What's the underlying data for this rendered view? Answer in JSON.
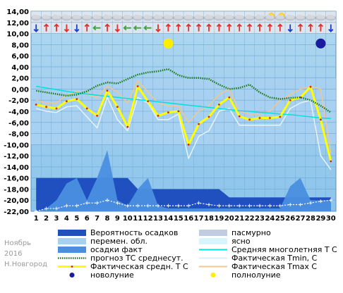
{
  "chart_data": {
    "type": "line",
    "watermark": [
      "Ноябрь",
      "2016",
      "Н.Новгород"
    ],
    "x": [
      1,
      2,
      3,
      4,
      5,
      6,
      7,
      8,
      9,
      10,
      11,
      12,
      13,
      14,
      15,
      16,
      17,
      18,
      19,
      20,
      21,
      22,
      23,
      24,
      25,
      26,
      27,
      28,
      29,
      30
    ],
    "ylim": [
      -22,
      14
    ],
    "yticks": [
      "14,00",
      "12,00",
      "10,00",
      "8,00",
      "6,00",
      "4,00",
      "2,00",
      "0,00",
      "-2,00",
      "-4,00",
      "-6,00",
      "-8,00",
      "-10,00",
      "-12,00",
      "-14,00",
      "-16,00",
      "-18,00",
      "-20,00",
      "-22,00"
    ],
    "series": [
      {
        "name": "прогноз ТС среднесут.",
        "color": "#1a7a1a",
        "values": [
          -0.3,
          -0.6,
          -0.9,
          -1.2,
          -1.0,
          -0.4,
          0.6,
          1.2,
          1.0,
          1.8,
          2.6,
          3.0,
          3.2,
          3.6,
          2.5,
          2.0,
          2.0,
          1.8,
          0.8,
          0.0,
          0.2,
          0.8,
          -0.6,
          -1.5,
          -1.8,
          -1.6,
          -1.5,
          -2.0,
          -3.0,
          -4.2
        ]
      },
      {
        "name": "Средняя многолетняя Т С",
        "color": "#00e0e0",
        "values": [
          0.5,
          0.2,
          -0.1,
          -0.4,
          -0.7,
          -0.9,
          -1.1,
          -1.3,
          -1.5,
          -1.7,
          -1.9,
          -2.1,
          -2.3,
          -2.5,
          -2.7,
          -2.9,
          -3.1,
          -3.3,
          -3.5,
          -3.7,
          -3.9,
          -4.0,
          -4.2,
          -4.3,
          -4.5,
          -4.6,
          -4.8,
          -5.0,
          -5.2,
          -5.3
        ]
      },
      {
        "name": "Фактическая Tmin, С",
        "color": "#e8f4f8",
        "values": [
          -3.5,
          -4.0,
          -4.2,
          -3.2,
          -3.0,
          -5.0,
          -7.0,
          -1.5,
          -5.5,
          -7.5,
          -1.5,
          -2.5,
          -5.5,
          -5.5,
          -4.5,
          -12.5,
          -8.5,
          -7.5,
          -4.0,
          -3.5,
          -6.5,
          -6.5,
          -6.5,
          -6.5,
          -6.5,
          -3.5,
          -2.5,
          -2.0,
          -12.0,
          -14.5
        ]
      },
      {
        "name": "Фактическая Tmax C",
        "color": "#f0c890",
        "values": [
          -2.0,
          -2.5,
          -2.5,
          -1.0,
          -0.5,
          -1.0,
          -1.5,
          0.5,
          -0.5,
          -2.5,
          1.5,
          -0.5,
          -2.5,
          -3.0,
          -3.0,
          -6.0,
          -4.0,
          -3.0,
          -1.0,
          0.0,
          -4.0,
          -4.5,
          -4.5,
          -4.0,
          -2.0,
          -1.0,
          0.0,
          0.5,
          0.0,
          -11.5
        ]
      },
      {
        "name": "Фактическая средн. Т С",
        "color": "#ffff00",
        "values": [
          -2.8,
          -3.2,
          -3.5,
          -2.2,
          -1.8,
          -3.5,
          -4.8,
          -0.3,
          -3.2,
          -6.8,
          0.5,
          -2.2,
          -4.8,
          -4.2,
          -4.0,
          -10.0,
          -6.3,
          -5.0,
          -2.8,
          -1.5,
          -4.9,
          -5.5,
          -5.2,
          -5.2,
          -5.0,
          -2.0,
          -1.5,
          0.4,
          -5.5,
          -13.0
        ]
      },
      {
        "name": "осадки факт",
        "color": "#4a8fe0",
        "values": [
          -22.0,
          -21.5,
          -20.0,
          -17.0,
          -16.0,
          -20.0,
          -16.0,
          -11.0,
          -20.0,
          -21.0,
          -18.0,
          -16.0,
          -21.0,
          -21.5,
          -21.5,
          -21.5,
          -21.5,
          -21.5,
          -21.5,
          -21.5,
          -21.5,
          -21.5,
          -21.5,
          -21.5,
          -21.5,
          -17.5,
          -16.0,
          -20.0,
          -20.0,
          -20.0
        ]
      },
      {
        "name": "Вероятность осадков",
        "color": "#2050c0",
        "values": [
          -16.0,
          -16.0,
          -16.0,
          -16.0,
          -16.0,
          -16.0,
          -16.0,
          -16.0,
          -16.0,
          -16.0,
          -18.0,
          -18.0,
          -18.0,
          -18.0,
          -18.0,
          -18.0,
          -18.0,
          -18.0,
          -18.0,
          -19.5,
          -19.5,
          -19.5,
          -19.5,
          -19.5,
          -19.5,
          -19.5,
          -19.5,
          -19.5,
          -19.5,
          -19.5
        ]
      },
      {
        "name": "снег",
        "color": "#ffffff",
        "values": [
          -22.0,
          -21.5,
          -21.5,
          -21.0,
          -21.0,
          -20.5,
          -20.5,
          -20.0,
          -20.5,
          -21.0,
          -21.0,
          -21.0,
          -21.0,
          -21.0,
          -21.0,
          -21.0,
          -20.5,
          -20.8,
          -21.0,
          -21.0,
          -21.0,
          -21.0,
          -21.0,
          -21.0,
          -21.0,
          -20.8,
          -20.8,
          -20.5,
          -20.2,
          -20.0
        ]
      }
    ],
    "legend": [
      {
        "label": "Вероятность осадков",
        "kind": "rect",
        "color": "#2050c0"
      },
      {
        "label": "пасмурно",
        "kind": "rect",
        "color": "#c0cce0"
      },
      {
        "label": "перемен. обл.",
        "kind": "rect",
        "color": "#a8d0f0"
      },
      {
        "label": "ясно",
        "kind": "rect",
        "color": "#d8f4fc"
      },
      {
        "label": "осадки факт",
        "kind": "rect",
        "color": "#4a8fe0"
      },
      {
        "label": "Средняя многолетняя Т С",
        "kind": "line",
        "color": "#00e0e0"
      },
      {
        "label": "прогноз ТС среднесут.",
        "kind": "dotted",
        "color": "#1a7a1a"
      },
      {
        "label": "Фактическая Tmin, С",
        "kind": "line",
        "color": "#d8f0fc"
      },
      {
        "label": "Фактическая средн. Т С",
        "kind": "line",
        "color": "#ffff00"
      },
      {
        "label": "Фактическая Tmax C",
        "kind": "line",
        "color": "#f0c890"
      },
      {
        "label": "новолуние",
        "kind": "dot",
        "color": "#1a1aa0"
      },
      {
        "label": "полнолуние",
        "kind": "dot",
        "color": "#ffee00"
      }
    ],
    "moon": {
      "new_day": 29,
      "full_day": 14
    },
    "icons_top": [
      "cloud",
      "cloud",
      "cloud",
      "cloud",
      "cloud",
      "cloud",
      "cloud",
      "cloud",
      "cloud",
      "cloud",
      "cloud",
      "cloud",
      "cloud",
      "cloud",
      "cloud",
      "cloud",
      "cloud",
      "cloud",
      "cloud",
      "cloud",
      "cloud",
      "cloud",
      "cloud",
      "sun-cloud",
      "sun-cloud",
      "cloud",
      "cloud",
      "cloud",
      "cloud",
      "cloud"
    ],
    "wind_arrows": [
      {
        "day": 1,
        "dir": "down",
        "color": "#1a3fd0"
      },
      {
        "day": 2,
        "dir": "up",
        "color": "#e03030"
      },
      {
        "day": 3,
        "dir": "up",
        "color": "#e03030"
      },
      {
        "day": 4,
        "dir": "down",
        "color": "#e03030"
      },
      {
        "day": 5,
        "dir": "down",
        "color": "#1a3fd0"
      },
      {
        "day": 6,
        "dir": "up",
        "color": "#e03030"
      },
      {
        "day": 7,
        "dir": "left",
        "color": "#40a040"
      },
      {
        "day": 8,
        "dir": "up",
        "color": "#e03030"
      },
      {
        "day": 9,
        "dir": "down",
        "color": "#e03030"
      },
      {
        "day": 10,
        "dir": "left",
        "color": "#40a040"
      },
      {
        "day": 11,
        "dir": "left",
        "color": "#40a040"
      },
      {
        "day": 12,
        "dir": "left",
        "color": "#40a040"
      },
      {
        "day": 13,
        "dir": "down",
        "color": "#e03030"
      },
      {
        "day": 14,
        "dir": "up",
        "color": "#e03030"
      },
      {
        "day": 15,
        "dir": "up",
        "color": "#e03030"
      },
      {
        "day": 16,
        "dir": "up",
        "color": "#e03030"
      },
      {
        "day": 17,
        "dir": "up",
        "color": "#e03030"
      },
      {
        "day": 18,
        "dir": "up",
        "color": "#e03030"
      },
      {
        "day": 19,
        "dir": "up",
        "color": "#e03030"
      },
      {
        "day": 20,
        "dir": "up",
        "color": "#e03030"
      },
      {
        "day": 21,
        "dir": "up",
        "color": "#e03030"
      },
      {
        "day": 22,
        "dir": "up",
        "color": "#e03030"
      },
      {
        "day": 23,
        "dir": "up",
        "color": "#e03030"
      },
      {
        "day": 24,
        "dir": "up",
        "color": "#e03030"
      },
      {
        "day": 25,
        "dir": "up",
        "color": "#e03030"
      },
      {
        "day": 26,
        "dir": "down",
        "color": "#1a3fd0"
      },
      {
        "day": 27,
        "dir": "up",
        "color": "#e03030"
      },
      {
        "day": 28,
        "dir": "up",
        "color": "#e03030"
      },
      {
        "day": 29,
        "dir": "up",
        "color": "#e03030"
      },
      {
        "day": 30,
        "dir": "down",
        "color": "#1a3fd0"
      }
    ],
    "grid": true
  }
}
